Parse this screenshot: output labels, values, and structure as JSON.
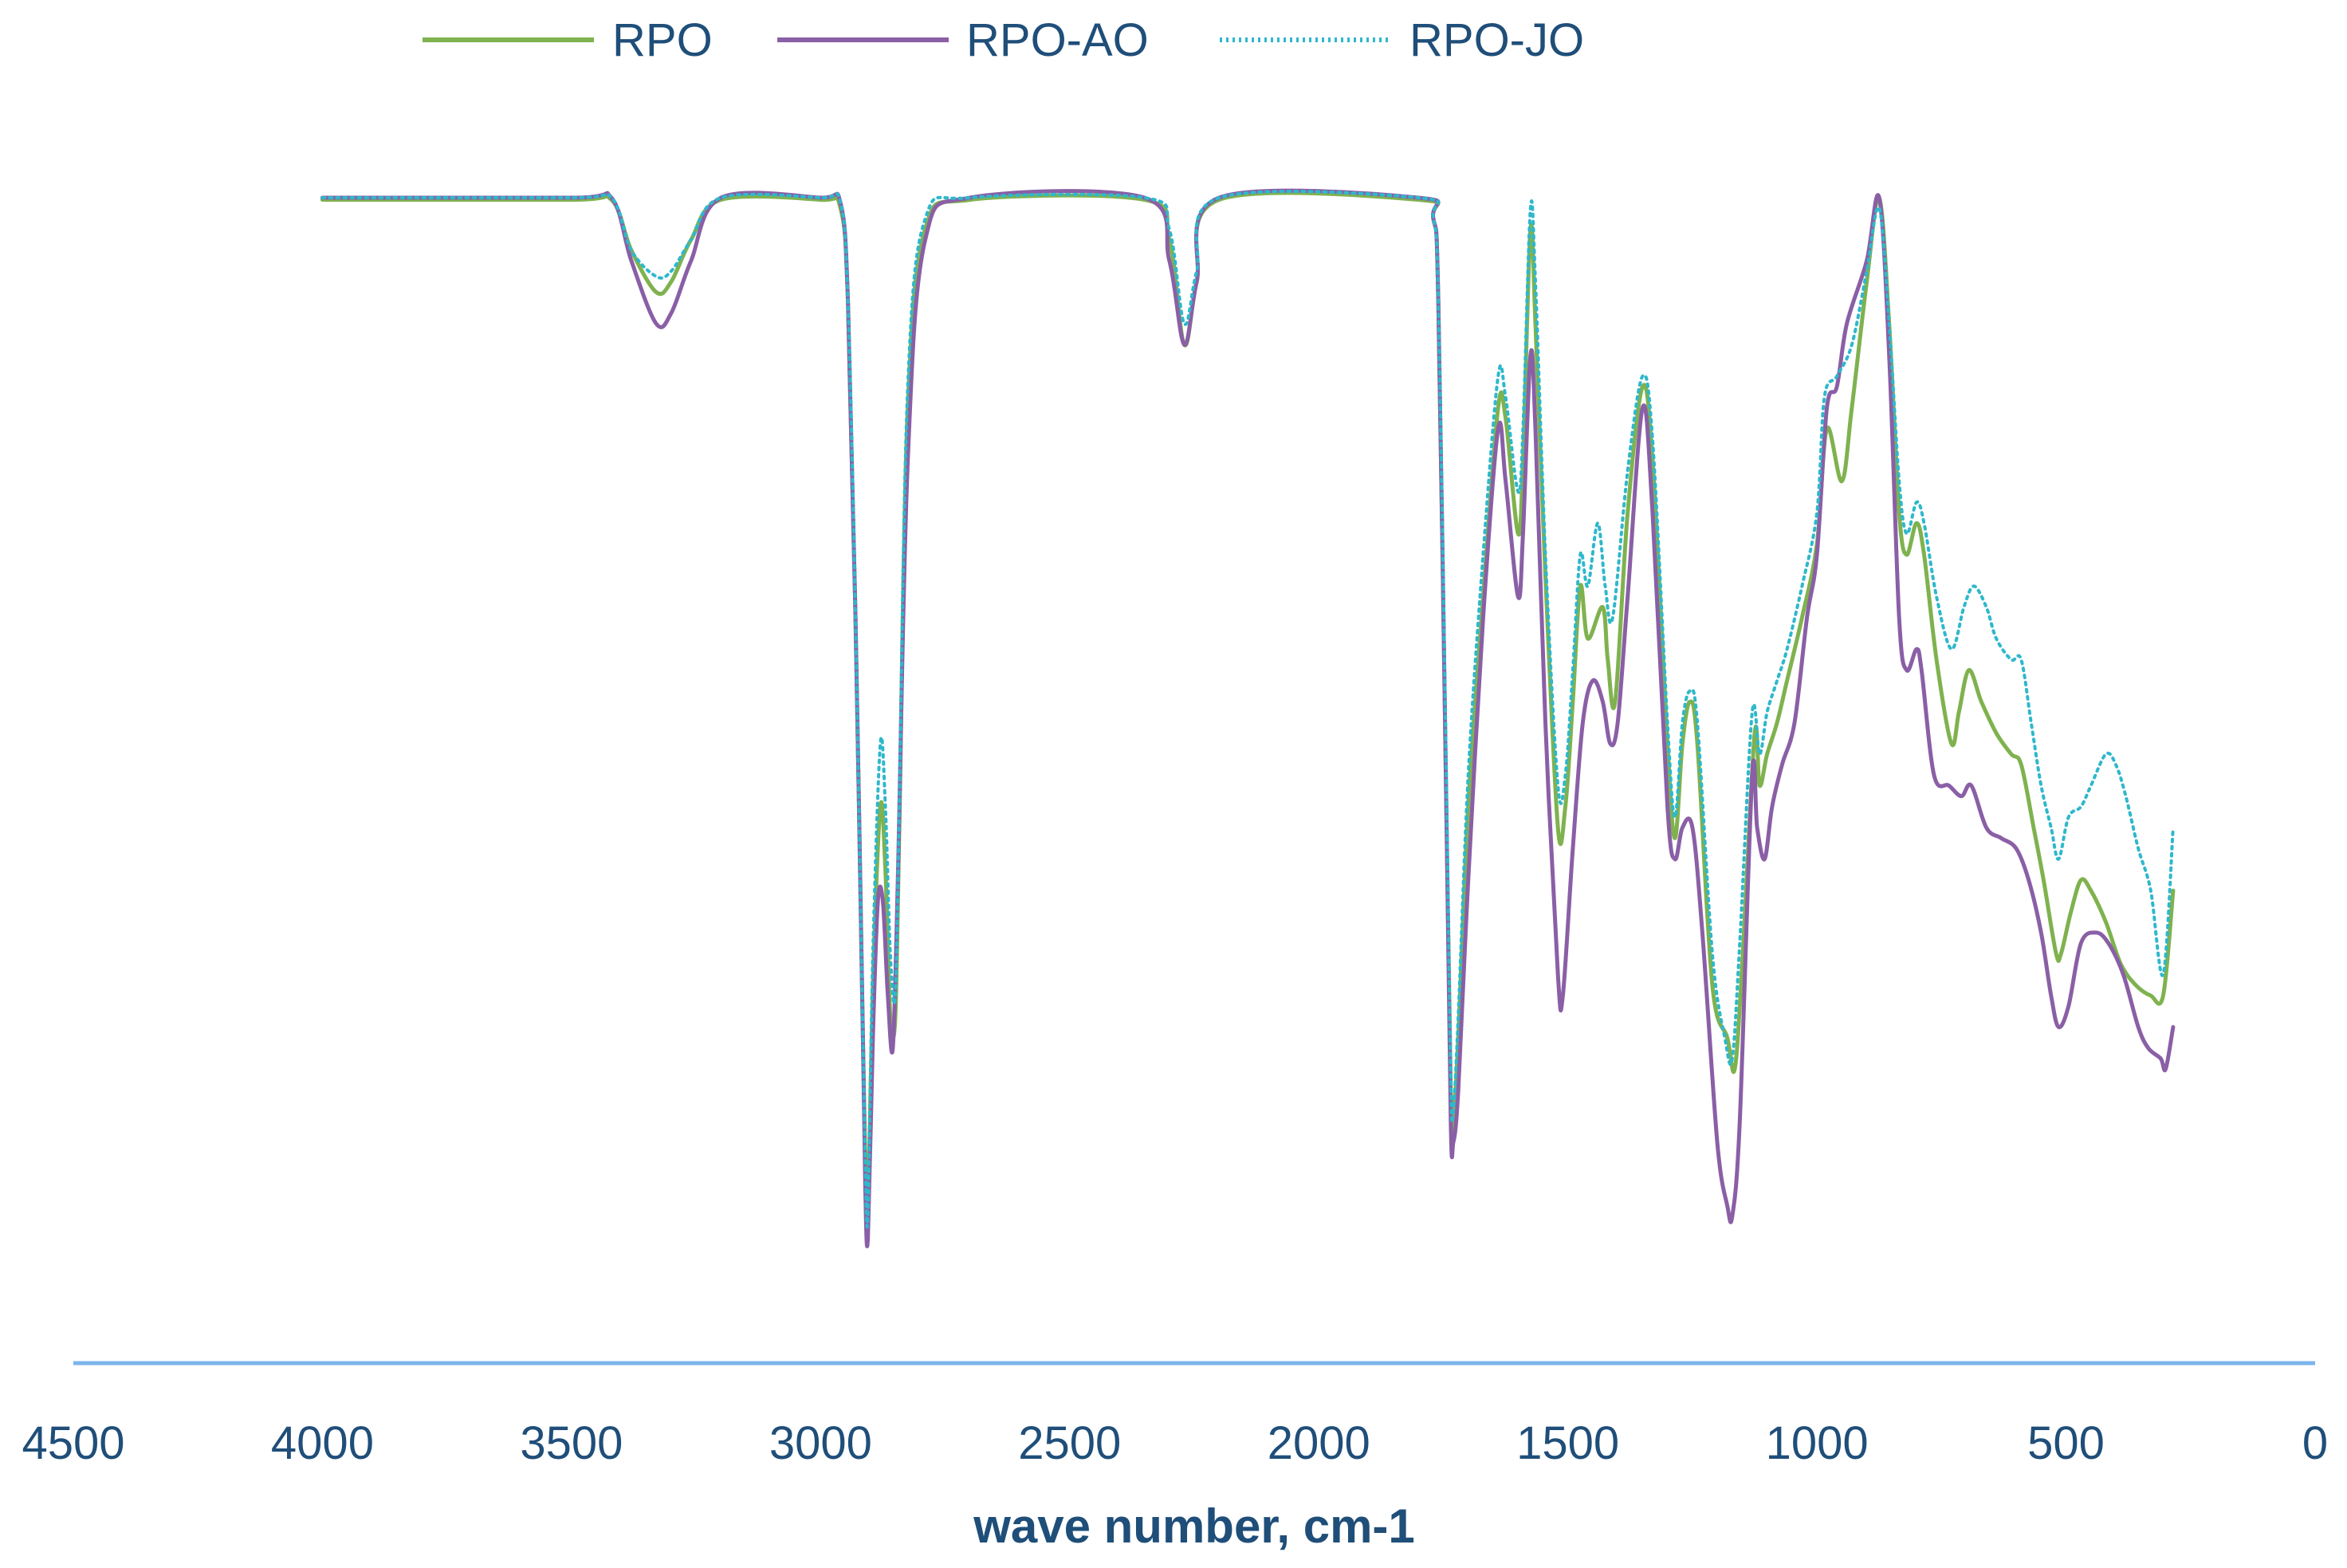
{
  "chart_data": {
    "type": "line",
    "title": "",
    "xlabel": "wave number, cm-1",
    "ylabel": "",
    "x_reversed": true,
    "xlim": [
      4500,
      0
    ],
    "ylim": [
      0,
      100
    ],
    "xticks": [
      "4500",
      "4000",
      "3500",
      "3000",
      "2500",
      "2000",
      "1500",
      "1000",
      "500",
      "0"
    ],
    "legend_position": "top",
    "grid": false,
    "axis_color": "#7cb5ec",
    "series": [
      {
        "name": "RPO",
        "color": "#7fb24f",
        "dash": "solid",
        "points": [
          [
            4000,
            99.8
          ],
          [
            3500,
            99.8
          ],
          [
            3420,
            99.8
          ],
          [
            3380,
            95
          ],
          [
            3330,
            91
          ],
          [
            3300,
            92
          ],
          [
            3260,
            96
          ],
          [
            3200,
            99.8
          ],
          [
            3000,
            99.8
          ],
          [
            2960,
            99
          ],
          [
            2945,
            90
          ],
          [
            2930,
            60
          ],
          [
            2915,
            20
          ],
          [
            2910,
            8
          ],
          [
            2905,
            3
          ],
          [
            2895,
            25
          ],
          [
            2880,
            42
          ],
          [
            2870,
            36
          ],
          [
            2860,
            22
          ],
          [
            2850,
            22
          ],
          [
            2842,
            40
          ],
          [
            2825,
            80
          ],
          [
            2790,
            97
          ],
          [
            2700,
            99.8
          ],
          [
            2350,
            99.8
          ],
          [
            2300,
            96
          ],
          [
            2270,
            86
          ],
          [
            2245,
            92
          ],
          [
            2200,
            99.8
          ],
          [
            1800,
            99.8
          ],
          [
            1770,
            98
          ],
          [
            1760,
            90
          ],
          [
            1745,
            45
          ],
          [
            1735,
            15
          ],
          [
            1730,
            12
          ],
          [
            1720,
            20
          ],
          [
            1700,
            42
          ],
          [
            1670,
            62
          ],
          [
            1640,
            80
          ],
          [
            1625,
            79
          ],
          [
            1600,
            68
          ],
          [
            1590,
            75
          ],
          [
            1575,
            97
          ],
          [
            1565,
            88
          ],
          [
            1545,
            64
          ],
          [
            1520,
            40
          ],
          [
            1505,
            42
          ],
          [
            1490,
            52
          ],
          [
            1475,
            63
          ],
          [
            1460,
            58
          ],
          [
            1430,
            61
          ],
          [
            1420,
            56
          ],
          [
            1405,
            52
          ],
          [
            1380,
            70
          ],
          [
            1350,
            82
          ],
          [
            1330,
            75
          ],
          [
            1300,
            48
          ],
          [
            1285,
            39
          ],
          [
            1270,
            48
          ],
          [
            1255,
            52
          ],
          [
            1240,
            48
          ],
          [
            1210,
            25
          ],
          [
            1180,
            20
          ],
          [
            1165,
            17
          ],
          [
            1150,
            27
          ],
          [
            1125,
            49
          ],
          [
            1115,
            44
          ],
          [
            1100,
            47
          ],
          [
            1080,
            50
          ],
          [
            1060,
            54
          ],
          [
            1030,
            60
          ],
          [
            1000,
            67
          ],
          [
            980,
            78
          ],
          [
            950,
            73
          ],
          [
            930,
            80
          ],
          [
            900,
            92
          ],
          [
            875,
            100
          ],
          [
            855,
            88
          ],
          [
            835,
            70
          ],
          [
            820,
            66
          ],
          [
            800,
            69
          ],
          [
            785,
            66
          ],
          [
            760,
            56
          ],
          [
            730,
            48
          ],
          [
            715,
            51
          ],
          [
            695,
            55
          ],
          [
            670,
            52
          ],
          [
            640,
            49
          ],
          [
            610,
            47
          ],
          [
            590,
            46
          ],
          [
            565,
            40
          ],
          [
            545,
            35
          ],
          [
            520,
            28
          ],
          [
            510,
            28
          ],
          [
            490,
            32
          ],
          [
            470,
            35
          ],
          [
            450,
            34
          ],
          [
            420,
            31
          ],
          [
            390,
            27
          ],
          [
            360,
            25
          ],
          [
            330,
            24
          ],
          [
            305,
            24
          ],
          [
            285,
            34
          ]
        ]
      },
      {
        "name": "RPO-AO",
        "color": "#8a5fa6",
        "dash": "solid",
        "points": [
          [
            4000,
            100
          ],
          [
            3500,
            100
          ],
          [
            3420,
            100
          ],
          [
            3380,
            94
          ],
          [
            3330,
            88
          ],
          [
            3300,
            89
          ],
          [
            3260,
            94
          ],
          [
            3200,
            100
          ],
          [
            3000,
            100
          ],
          [
            2960,
            99.5
          ],
          [
            2945,
            90
          ],
          [
            2930,
            60
          ],
          [
            2915,
            20
          ],
          [
            2910,
            5
          ],
          [
            2905,
            1
          ],
          [
            2895,
            20
          ],
          [
            2885,
            33
          ],
          [
            2875,
            33
          ],
          [
            2865,
            24
          ],
          [
            2855,
            19
          ],
          [
            2845,
            35
          ],
          [
            2825,
            75
          ],
          [
            2790,
            96
          ],
          [
            2700,
            100
          ],
          [
            2350,
            100
          ],
          [
            2300,
            94
          ],
          [
            2270,
            86
          ],
          [
            2245,
            92
          ],
          [
            2200,
            100
          ],
          [
            1800,
            100
          ],
          [
            1770,
            98
          ],
          [
            1760,
            90
          ],
          [
            1745,
            45
          ],
          [
            1735,
            12
          ],
          [
            1730,
            10
          ],
          [
            1720,
            15
          ],
          [
            1700,
            35
          ],
          [
            1670,
            60
          ],
          [
            1640,
            78
          ],
          [
            1625,
            73
          ],
          [
            1600,
            62
          ],
          [
            1590,
            68
          ],
          [
            1575,
            85
          ],
          [
            1565,
            78
          ],
          [
            1545,
            50
          ],
          [
            1520,
            26
          ],
          [
            1510,
            24
          ],
          [
            1490,
            38
          ],
          [
            1470,
            50
          ],
          [
            1450,
            54
          ],
          [
            1430,
            52
          ],
          [
            1415,
            48
          ],
          [
            1400,
            50
          ],
          [
            1380,
            62
          ],
          [
            1350,
            80
          ],
          [
            1330,
            70
          ],
          [
            1300,
            42
          ],
          [
            1285,
            37
          ],
          [
            1270,
            40
          ],
          [
            1250,
            40
          ],
          [
            1230,
            30
          ],
          [
            1200,
            10
          ],
          [
            1180,
            4
          ],
          [
            1170,
            3
          ],
          [
            1155,
            12
          ],
          [
            1130,
            45
          ],
          [
            1120,
            40
          ],
          [
            1105,
            37
          ],
          [
            1090,
            42
          ],
          [
            1070,
            46
          ],
          [
            1045,
            50
          ],
          [
            1020,
            60
          ],
          [
            1000,
            66
          ],
          [
            980,
            80
          ],
          [
            960,
            82
          ],
          [
            940,
            88
          ],
          [
            900,
            94
          ],
          [
            875,
            100
          ],
          [
            855,
            85
          ],
          [
            835,
            60
          ],
          [
            820,
            55
          ],
          [
            800,
            57
          ],
          [
            790,
            55
          ],
          [
            765,
            45
          ],
          [
            735,
            44
          ],
          [
            710,
            43
          ],
          [
            690,
            44
          ],
          [
            660,
            40
          ],
          [
            630,
            39
          ],
          [
            600,
            38
          ],
          [
            575,
            35
          ],
          [
            550,
            30
          ],
          [
            530,
            24
          ],
          [
            515,
            21
          ],
          [
            495,
            23
          ],
          [
            470,
            29
          ],
          [
            440,
            30
          ],
          [
            415,
            29
          ],
          [
            385,
            26
          ],
          [
            355,
            21
          ],
          [
            335,
            19
          ],
          [
            310,
            18
          ],
          [
            300,
            17
          ],
          [
            285,
            21
          ]
        ]
      },
      {
        "name": "RPO-JO",
        "color": "#2eb8cc",
        "dash": "dotted",
        "points": [
          [
            4000,
            100
          ],
          [
            3500,
            100
          ],
          [
            3420,
            100
          ],
          [
            3380,
            95
          ],
          [
            3330,
            92.5
          ],
          [
            3300,
            93
          ],
          [
            3260,
            96
          ],
          [
            3200,
            100
          ],
          [
            3000,
            100
          ],
          [
            2960,
            99.5
          ],
          [
            2945,
            90
          ],
          [
            2930,
            60
          ],
          [
            2915,
            20
          ],
          [
            2910,
            8
          ],
          [
            2905,
            3
          ],
          [
            2895,
            28
          ],
          [
            2880,
            48
          ],
          [
            2870,
            42
          ],
          [
            2860,
            28
          ],
          [
            2850,
            24
          ],
          [
            2842,
            42
          ],
          [
            2825,
            82
          ],
          [
            2790,
            98
          ],
          [
            2700,
            100
          ],
          [
            2350,
            100
          ],
          [
            2300,
            97
          ],
          [
            2270,
            88
          ],
          [
            2245,
            93
          ],
          [
            2200,
            100
          ],
          [
            1800,
            100
          ],
          [
            1770,
            98
          ],
          [
            1760,
            90
          ],
          [
            1745,
            48
          ],
          [
            1735,
            16
          ],
          [
            1730,
            13
          ],
          [
            1720,
            22
          ],
          [
            1700,
            45
          ],
          [
            1670,
            66
          ],
          [
            1640,
            83
          ],
          [
            1625,
            81
          ],
          [
            1600,
            72
          ],
          [
            1590,
            78
          ],
          [
            1575,
            99
          ],
          [
            1565,
            92
          ],
          [
            1545,
            66
          ],
          [
            1520,
            44
          ],
          [
            1505,
            45
          ],
          [
            1490,
            55
          ],
          [
            1475,
            66
          ],
          [
            1460,
            63
          ],
          [
            1440,
            69
          ],
          [
            1425,
            63
          ],
          [
            1410,
            60
          ],
          [
            1380,
            74
          ],
          [
            1350,
            83
          ],
          [
            1330,
            77
          ],
          [
            1300,
            50
          ],
          [
            1285,
            41
          ],
          [
            1270,
            50
          ],
          [
            1255,
            53
          ],
          [
            1240,
            50
          ],
          [
            1210,
            28
          ],
          [
            1185,
            20
          ],
          [
            1170,
            18
          ],
          [
            1155,
            29
          ],
          [
            1130,
            51
          ],
          [
            1115,
            47
          ],
          [
            1100,
            51
          ],
          [
            1080,
            54
          ],
          [
            1060,
            57
          ],
          [
            1030,
            63
          ],
          [
            1000,
            70
          ],
          [
            985,
            81
          ],
          [
            960,
            83
          ],
          [
            930,
            86
          ],
          [
            900,
            93
          ],
          [
            875,
            99
          ],
          [
            855,
            88
          ],
          [
            835,
            73
          ],
          [
            820,
            68
          ],
          [
            800,
            71
          ],
          [
            785,
            69
          ],
          [
            760,
            62
          ],
          [
            730,
            57
          ],
          [
            705,
            61
          ],
          [
            685,
            63
          ],
          [
            660,
            61
          ],
          [
            640,
            58
          ],
          [
            610,
            56
          ],
          [
            590,
            56
          ],
          [
            570,
            50
          ],
          [
            550,
            44
          ],
          [
            530,
            40
          ],
          [
            515,
            37
          ],
          [
            495,
            41
          ],
          [
            470,
            42
          ],
          [
            450,
            44
          ],
          [
            420,
            47
          ],
          [
            400,
            46
          ],
          [
            380,
            43
          ],
          [
            355,
            38
          ],
          [
            330,
            34
          ],
          [
            305,
            26
          ],
          [
            285,
            40
          ]
        ]
      }
    ]
  }
}
